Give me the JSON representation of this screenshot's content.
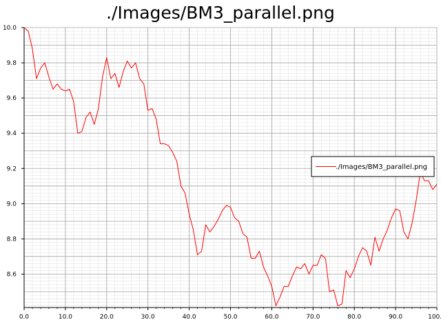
{
  "chart_data": {
    "type": "line",
    "title": "./Images/BM3_parallel.png",
    "xlabel": "",
    "ylabel": "",
    "xlim": [
      0,
      100
    ],
    "ylim": [
      8.41,
      10.0
    ],
    "x_ticks": [
      0,
      10,
      20,
      30,
      40,
      50,
      60,
      70,
      80,
      90,
      100
    ],
    "x_tick_labels": [
      "0.0",
      "10.0",
      "20.0",
      "30.0",
      "40.0",
      "50.0",
      "60.0",
      "70.0",
      "80.0",
      "90.0",
      "100.0"
    ],
    "y_ticks": [
      8.6,
      8.8,
      9.0,
      9.2,
      9.4,
      9.6,
      9.8,
      10.0
    ],
    "y_tick_labels": [
      "8.6",
      "8.8",
      "9.0",
      "9.2",
      "9.4",
      "9.6",
      "9.8",
      "10.0"
    ],
    "grid": true,
    "legend_position": "right",
    "series": [
      {
        "name": "./Images/BM3_parallel.png",
        "color": "#ff0000",
        "x": [
          0,
          1,
          2,
          3,
          4,
          5,
          6,
          7,
          8,
          9,
          10,
          11,
          12,
          13,
          14,
          15,
          16,
          17,
          18,
          19,
          20,
          21,
          22,
          23,
          24,
          25,
          26,
          27,
          28,
          29,
          30,
          31,
          32,
          33,
          34,
          35,
          36,
          37,
          38,
          39,
          40,
          41,
          42,
          43,
          44,
          45,
          46,
          47,
          48,
          49,
          50,
          51,
          52,
          53,
          54,
          55,
          56,
          57,
          58,
          59,
          60,
          61,
          62,
          63,
          64,
          65,
          66,
          67,
          68,
          69,
          70,
          71,
          72,
          73,
          74,
          75,
          76,
          77,
          78,
          79,
          80,
          81,
          82,
          83,
          84,
          85,
          86,
          87,
          88,
          89,
          90,
          91,
          92,
          93,
          94,
          95,
          96,
          97,
          98,
          99,
          100
        ],
        "values": [
          10.0,
          9.98,
          9.88,
          9.71,
          9.77,
          9.8,
          9.72,
          9.65,
          9.68,
          9.65,
          9.64,
          9.65,
          9.58,
          9.4,
          9.41,
          9.49,
          9.52,
          9.45,
          9.54,
          9.72,
          9.83,
          9.71,
          9.74,
          9.66,
          9.75,
          9.81,
          9.77,
          9.8,
          9.71,
          9.68,
          9.53,
          9.54,
          9.48,
          9.34,
          9.34,
          9.33,
          9.29,
          9.24,
          9.1,
          9.06,
          8.94,
          8.85,
          8.71,
          8.73,
          8.88,
          8.84,
          8.87,
          8.91,
          8.96,
          8.99,
          8.98,
          8.92,
          8.9,
          8.83,
          8.81,
          8.69,
          8.69,
          8.73,
          8.64,
          8.59,
          8.53,
          8.42,
          8.47,
          8.53,
          8.53,
          8.59,
          8.64,
          8.63,
          8.66,
          8.6,
          8.65,
          8.65,
          8.71,
          8.69,
          8.5,
          8.51,
          8.42,
          8.43,
          8.62,
          8.58,
          8.63,
          8.7,
          8.75,
          8.73,
          8.65,
          8.81,
          8.73,
          8.8,
          8.85,
          8.92,
          8.97,
          8.96,
          8.84,
          8.8,
          8.89,
          9.02,
          9.18,
          9.13,
          9.13,
          9.08,
          9.11
        ]
      }
    ]
  }
}
